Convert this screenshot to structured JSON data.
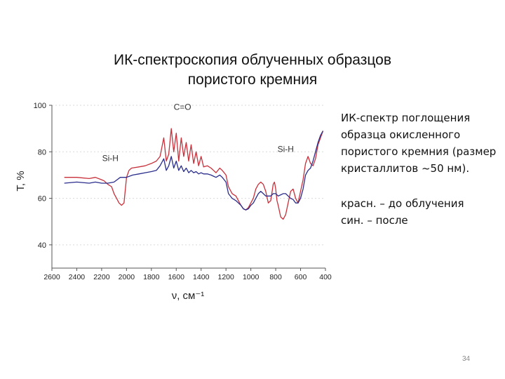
{
  "slide": {
    "title_line1": "ИК-спектроскопия облученных образцов",
    "title_line2": "пористого кремния",
    "description": "ИК-спектр поглощения образца окисленного пористого кремния (размер кристаллитов ~50 нм).",
    "legend_text_line1": "красн. – до облучения",
    "legend_text_line2": "син. – после",
    "page_number": "34"
  },
  "chart_data": {
    "type": "line",
    "xlabel": "ν, см⁻¹",
    "ylabel": "T, %",
    "xlim": [
      2600,
      400
    ],
    "ylim": [
      30,
      100
    ],
    "x_ticks": [
      2600,
      2400,
      2200,
      2000,
      1800,
      1600,
      1400,
      1200,
      1000,
      800,
      600,
      400
    ],
    "y_ticks": [
      40,
      60,
      80,
      100
    ],
    "annotations": [
      {
        "text": "C=O",
        "x": 1550,
        "y": 98
      },
      {
        "text": "Si-H",
        "x": 2130,
        "y": 76
      },
      {
        "text": "Si-H",
        "x": 720,
        "y": 80
      }
    ],
    "series": [
      {
        "color": "#c8303a",
        "x": [
          2500,
          2400,
          2300,
          2250,
          2200,
          2180,
          2150,
          2120,
          2100,
          2080,
          2060,
          2040,
          2020,
          2000,
          1980,
          1960,
          1900,
          1850,
          1800,
          1760,
          1730,
          1700,
          1680,
          1660,
          1640,
          1620,
          1600,
          1580,
          1560,
          1540,
          1520,
          1500,
          1480,
          1460,
          1440,
          1420,
          1400,
          1380,
          1350,
          1320,
          1300,
          1280,
          1250,
          1230,
          1200,
          1180,
          1150,
          1120,
          1100,
          1080,
          1060,
          1040,
          1020,
          1000,
          980,
          960,
          940,
          920,
          900,
          880,
          860,
          840,
          820,
          810,
          800,
          790,
          780,
          760,
          740,
          720,
          700,
          680,
          660,
          640,
          620,
          600,
          580,
          560,
          540,
          520,
          500,
          480,
          460,
          440,
          420
        ],
        "y": [
          69,
          69,
          68.5,
          69,
          68,
          67.5,
          66,
          65,
          62,
          60,
          58,
          57,
          58,
          69,
          72,
          73,
          73.5,
          74,
          75,
          76,
          78,
          86,
          76,
          79,
          90,
          80,
          88,
          76,
          86,
          78,
          84,
          76,
          83,
          75,
          80,
          74,
          78,
          73.5,
          74,
          73,
          72,
          71,
          73,
          72,
          70,
          65,
          62,
          61,
          59,
          57,
          55.5,
          55,
          56,
          58,
          60,
          64,
          66,
          67,
          66,
          63,
          58,
          59,
          66,
          67,
          64,
          59,
          57,
          52,
          51,
          53,
          58,
          63,
          64,
          60,
          58,
          63,
          68,
          75,
          78,
          75,
          74,
          77,
          83,
          86,
          89
        ]
      },
      {
        "color": "#2a2d8c",
        "x": [
          2500,
          2400,
          2300,
          2250,
          2200,
          2150,
          2100,
          2050,
          2000,
          1950,
          1900,
          1850,
          1800,
          1760,
          1730,
          1700,
          1680,
          1660,
          1640,
          1620,
          1600,
          1580,
          1560,
          1540,
          1520,
          1500,
          1480,
          1460,
          1440,
          1420,
          1400,
          1380,
          1350,
          1320,
          1300,
          1280,
          1250,
          1230,
          1200,
          1180,
          1150,
          1120,
          1100,
          1080,
          1060,
          1040,
          1020,
          1000,
          980,
          960,
          940,
          920,
          900,
          880,
          860,
          840,
          820,
          800,
          780,
          760,
          740,
          720,
          700,
          680,
          660,
          640,
          620,
          600,
          580,
          560,
          540,
          520,
          500,
          480,
          460,
          440,
          420
        ],
        "y": [
          66.5,
          67,
          66.5,
          67,
          66.5,
          66.5,
          67,
          69,
          69,
          70,
          70.5,
          71,
          71.5,
          72,
          74,
          77,
          72,
          74,
          78,
          73,
          76,
          72,
          74,
          71.5,
          73,
          71,
          72,
          71,
          71.5,
          70.5,
          71,
          70.5,
          70.5,
          70,
          69.5,
          69,
          70,
          69,
          67,
          62,
          60,
          59,
          58,
          57,
          55.5,
          55,
          55.5,
          57,
          58,
          60,
          62,
          63,
          62,
          61,
          61,
          61,
          62,
          62,
          61,
          61.5,
          62,
          62,
          61,
          60,
          59.5,
          58,
          58,
          60,
          64,
          70,
          72,
          73,
          76,
          80,
          84,
          87,
          89
        ]
      }
    ]
  }
}
